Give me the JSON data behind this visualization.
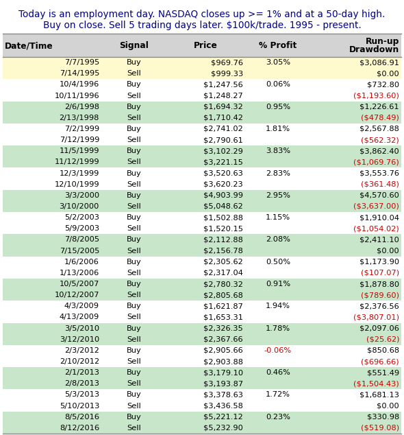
{
  "title_line1": "Today is an employment day. NASDAQ closes up >= 1% and at a 50-day high.",
  "title_line2": "Buy on close. Sell 5 trading days later. $100k/trade. 1995 - present.",
  "title_color": "#00008B",
  "headers": [
    "Date/Time",
    "Signal",
    "Price",
    "% Profit",
    "Run-up\nDrawdown"
  ],
  "rows": [
    [
      "7/7/1995",
      "Buy",
      "$969.76",
      "3.05%",
      "$3,086.91"
    ],
    [
      "7/14/1995",
      "Sell",
      "$999.33",
      "",
      "$0.00"
    ],
    [
      "10/4/1996",
      "Buy",
      "$1,247.56",
      "0.06%",
      "$732.80"
    ],
    [
      "10/11/1996",
      "Sell",
      "$1,248.27",
      "",
      "($1,193.60)"
    ],
    [
      "2/6/1998",
      "Buy",
      "$1,694.32",
      "0.95%",
      "$1,226.61"
    ],
    [
      "2/13/1998",
      "Sell",
      "$1,710.42",
      "",
      "($478.49)"
    ],
    [
      "7/2/1999",
      "Buy",
      "$2,741.02",
      "1.81%",
      "$2,567.88"
    ],
    [
      "7/12/1999",
      "Sell",
      "$2,790.61",
      "",
      "($562.32)"
    ],
    [
      "11/5/1999",
      "Buy",
      "$3,102.29",
      "3.83%",
      "$3,862.40"
    ],
    [
      "11/12/1999",
      "Sell",
      "$3,221.15",
      "",
      "($1,069.76)"
    ],
    [
      "12/3/1999",
      "Buy",
      "$3,520.63",
      "2.83%",
      "$3,553.76"
    ],
    [
      "12/10/1999",
      "Sell",
      "$3,620.23",
      "",
      "($361.48)"
    ],
    [
      "3/3/2000",
      "Buy",
      "$4,903.99",
      "2.95%",
      "$4,570.60"
    ],
    [
      "3/10/2000",
      "Sell",
      "$5,048.62",
      "",
      "($3,637.00)"
    ],
    [
      "5/2/2003",
      "Buy",
      "$1,502.88",
      "1.15%",
      "$1,910.04"
    ],
    [
      "5/9/2003",
      "Sell",
      "$1,520.15",
      "",
      "($1,054.02)"
    ],
    [
      "7/8/2005",
      "Buy",
      "$2,112.88",
      "2.08%",
      "$2,411.10"
    ],
    [
      "7/15/2005",
      "Sell",
      "$2,156.78",
      "",
      "$0.00"
    ],
    [
      "1/6/2006",
      "Buy",
      "$2,305.62",
      "0.50%",
      "$1,173.90"
    ],
    [
      "1/13/2006",
      "Sell",
      "$2,317.04",
      "",
      "($107.07)"
    ],
    [
      "10/5/2007",
      "Buy",
      "$2,780.32",
      "0.91%",
      "$1,878.80"
    ],
    [
      "10/12/2007",
      "Sell",
      "$2,805.68",
      "",
      "($789.60)"
    ],
    [
      "4/3/2009",
      "Buy",
      "$1,621.87",
      "1.94%",
      "$2,376.56"
    ],
    [
      "4/13/2009",
      "Sell",
      "$1,653.31",
      "",
      "($3,807.01)"
    ],
    [
      "3/5/2010",
      "Buy",
      "$2,326.35",
      "1.78%",
      "$2,097.06"
    ],
    [
      "3/12/2010",
      "Sell",
      "$2,367.66",
      "",
      "($25.62)"
    ],
    [
      "2/3/2012",
      "Buy",
      "$2,905.66",
      "-0.06%",
      "$850.68"
    ],
    [
      "2/10/2012",
      "Sell",
      "$2,903.88",
      "",
      "($696.66)"
    ],
    [
      "2/1/2013",
      "Buy",
      "$3,179.10",
      "0.46%",
      "$551.49"
    ],
    [
      "2/8/2013",
      "Sell",
      "$3,193.87",
      "",
      "($1,504.43)"
    ],
    [
      "5/3/2013",
      "Buy",
      "$3,378.63",
      "1.72%",
      "$1,681.13"
    ],
    [
      "5/10/2013",
      "Sell",
      "$3,436.58",
      "",
      "$0.00"
    ],
    [
      "8/5/2016",
      "Buy",
      "$5,221.12",
      "0.23%",
      "$330.98"
    ],
    [
      "8/12/2016",
      "Sell",
      "$5,232.90",
      "",
      "($519.08)"
    ]
  ],
  "pair_bg_colors": [
    "#FFFACD",
    "#ffffff",
    "#c8e6c9",
    "#ffffff",
    "#c8e6c9",
    "#ffffff",
    "#c8e6c9",
    "#ffffff",
    "#c8e6c9",
    "#ffffff",
    "#c8e6c9",
    "#ffffff",
    "#c8e6c9",
    "#ffffff",
    "#c8e6c9",
    "#ffffff",
    "#c8e6c9"
  ],
  "header_bg": "#d3d3d3",
  "negative_color": "#cc0000",
  "profit_negative_color": "#cc0000",
  "bg_color": "#ffffff",
  "title_fontsize": 9.8,
  "header_fontsize": 8.8,
  "cell_fontsize": 8.2
}
